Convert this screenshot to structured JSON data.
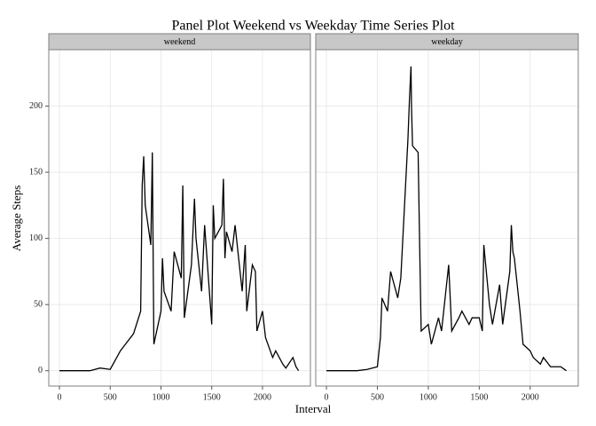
{
  "chart_data": {
    "type": "line",
    "title": "Panel Plot Weekend vs Weekday Time Series Plot",
    "x_label": "Interval",
    "y_label": "Average Steps",
    "color": "#000000",
    "grid": true,
    "xlim": [
      -105,
      2472
    ],
    "ylim": [
      -11.6,
      242.6
    ],
    "xticks": [
      0,
      500,
      1000,
      1500,
      2000
    ],
    "yticks": [
      0,
      50,
      100,
      150,
      200
    ],
    "panels": [
      {
        "name": "weekend",
        "x": [
          0,
          100,
          200,
          300,
          400,
          500,
          550,
          600,
          650,
          700,
          730,
          800,
          815,
          830,
          845,
          900,
          915,
          930,
          1000,
          1015,
          1030,
          1100,
          1130,
          1200,
          1215,
          1230,
          1300,
          1330,
          1345,
          1400,
          1430,
          1500,
          1515,
          1530,
          1600,
          1615,
          1630,
          1645,
          1700,
          1730,
          1800,
          1830,
          1845,
          1900,
          1930,
          1945,
          2000,
          2030,
          2100,
          2130,
          2200,
          2230,
          2300,
          2330,
          2355
        ],
        "values": [
          0,
          0,
          0,
          0,
          2,
          1,
          8,
          15,
          20,
          25,
          28,
          45,
          140,
          162,
          125,
          95,
          165,
          20,
          45,
          85,
          60,
          45,
          90,
          70,
          140,
          40,
          80,
          130,
          100,
          60,
          110,
          35,
          125,
          100,
          110,
          145,
          85,
          105,
          90,
          110,
          60,
          95,
          45,
          80,
          75,
          30,
          45,
          25,
          10,
          15,
          5,
          2,
          10,
          3,
          0
        ]
      },
      {
        "name": "weekday",
        "x": [
          0,
          100,
          200,
          300,
          400,
          500,
          530,
          545,
          600,
          630,
          700,
          730,
          800,
          815,
          830,
          835,
          845,
          900,
          915,
          930,
          1000,
          1030,
          1100,
          1130,
          1200,
          1230,
          1300,
          1330,
          1400,
          1430,
          1500,
          1530,
          1545,
          1600,
          1630,
          1700,
          1730,
          1800,
          1815,
          1830,
          1845,
          1900,
          1930,
          2000,
          2030,
          2100,
          2130,
          2200,
          2300,
          2355
        ],
        "values": [
          0,
          0,
          0,
          0,
          1,
          3,
          25,
          55,
          45,
          75,
          55,
          70,
          175,
          205,
          230,
          200,
          170,
          165,
          95,
          30,
          35,
          20,
          40,
          30,
          80,
          30,
          40,
          45,
          35,
          40,
          40,
          30,
          95,
          50,
          35,
          65,
          35,
          75,
          110,
          90,
          85,
          45,
          20,
          15,
          10,
          5,
          10,
          3,
          3,
          0
        ]
      }
    ]
  }
}
